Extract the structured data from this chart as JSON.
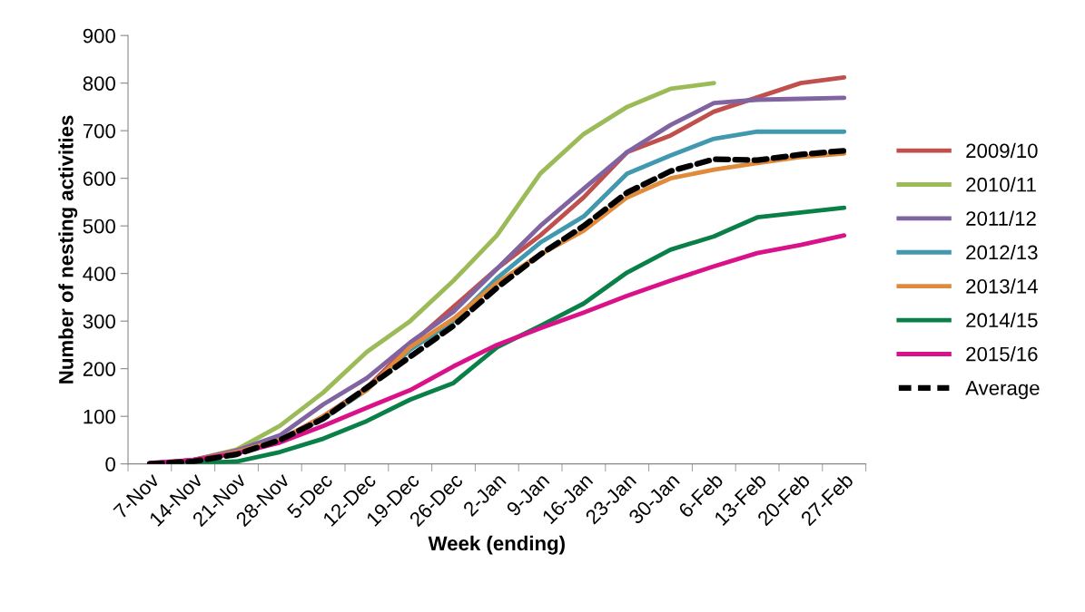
{
  "chart_data": {
    "type": "line",
    "xlabel": "Week (ending)",
    "ylabel": "Number of nesting activities",
    "categories": [
      "7-Nov",
      "14-Nov",
      "21-Nov",
      "28-Nov",
      "5-Dec",
      "12-Dec",
      "19-Dec",
      "26-Dec",
      "2-Jan",
      "9-Jan",
      "16-Jan",
      "23-Jan",
      "30-Jan",
      "6-Feb",
      "13-Feb",
      "20-Feb",
      "27-Feb"
    ],
    "series": [
      {
        "name": "2009/10",
        "color": "#c0504d",
        "values": [
          0,
          8,
          25,
          50,
          100,
          160,
          250,
          330,
          410,
          480,
          560,
          655,
          690,
          740,
          770,
          800,
          812
        ]
      },
      {
        "name": "2010/11",
        "color": "#9bbb59",
        "values": [
          0,
          8,
          30,
          80,
          150,
          235,
          300,
          385,
          480,
          610,
          693,
          750,
          788,
          800,
          null,
          null,
          null
        ]
      },
      {
        "name": "2011/12",
        "color": "#8064a2",
        "values": [
          0,
          8,
          28,
          60,
          125,
          180,
          255,
          320,
          410,
          500,
          578,
          655,
          712,
          758,
          765,
          767,
          769
        ]
      },
      {
        "name": "2012/13",
        "color": "#4198af",
        "values": [
          null,
          null,
          null,
          50,
          95,
          155,
          240,
          300,
          390,
          465,
          520,
          610,
          648,
          683,
          698,
          698,
          698
        ]
      },
      {
        "name": "2013/14",
        "color": "#e08a3c",
        "values": [
          0,
          8,
          25,
          50,
          100,
          155,
          245,
          305,
          380,
          440,
          490,
          560,
          600,
          618,
          632,
          645,
          652
        ]
      },
      {
        "name": "2014/15",
        "color": "#0a8048",
        "values": [
          0,
          2,
          5,
          25,
          53,
          90,
          135,
          170,
          245,
          290,
          337,
          402,
          450,
          478,
          518,
          528,
          538
        ]
      },
      {
        "name": "2015/16",
        "color": "#d9128a",
        "values": [
          2,
          8,
          22,
          45,
          80,
          118,
          155,
          205,
          250,
          285,
          318,
          353,
          385,
          415,
          443,
          460,
          480
        ]
      },
      {
        "name": "Average",
        "color": "#000000",
        "line_style": "dashed",
        "values": [
          0,
          5,
          20,
          50,
          95,
          160,
          225,
          290,
          370,
          440,
          500,
          570,
          615,
          640,
          638,
          650,
          658
        ]
      }
    ],
    "ylim": [
      0,
      900
    ],
    "yticks": [
      0,
      100,
      200,
      300,
      400,
      500,
      600,
      700,
      800,
      900
    ],
    "grid": false,
    "legend": "right",
    "marker": "none",
    "line_style": "solid"
  }
}
